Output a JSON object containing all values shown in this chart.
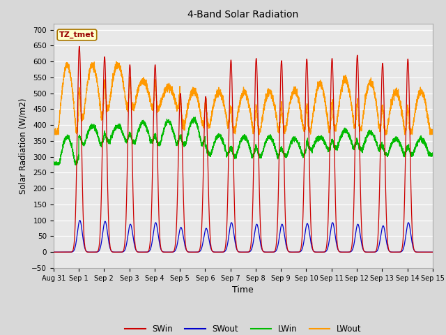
{
  "title": "4-Band Solar Radiation",
  "xlabel": "Time",
  "ylabel": "Solar Radiation (W/m2)",
  "ylim": [
    -50,
    720
  ],
  "legend_labels": [
    "SWin",
    "SWout",
    "LWin",
    "LWout"
  ],
  "legend_colors": [
    "#cc0000",
    "#0000cc",
    "#00bb00",
    "#ff9900"
  ],
  "fig_bg_color": "#d8d8d8",
  "plot_bg_color": "#e8e8e8",
  "grid_color": "#ffffff",
  "annotation_text": "TZ_tmet",
  "annotation_bg": "#ffffcc",
  "annotation_border": "#aa7700",
  "annotation_text_color": "#990000",
  "n_points": 4320,
  "n_days": 15,
  "sw_peaks": [
    648,
    615,
    590,
    590,
    500,
    490,
    605,
    610,
    603,
    608,
    610,
    620,
    595,
    608,
    0
  ],
  "sw_out_peaks": [
    100,
    97,
    88,
    93,
    78,
    75,
    93,
    88,
    88,
    90,
    93,
    88,
    83,
    93,
    0
  ],
  "lwin_night": [
    278,
    340,
    348,
    345,
    340,
    338,
    308,
    303,
    303,
    303,
    323,
    328,
    323,
    308,
    308
  ],
  "lwin_day": [
    362,
    397,
    397,
    407,
    412,
    418,
    367,
    362,
    362,
    357,
    362,
    382,
    377,
    357,
    357
  ],
  "lwout_night": [
    378,
    423,
    453,
    453,
    453,
    398,
    398,
    383,
    383,
    383,
    383,
    393,
    388,
    378,
    378
  ],
  "lwout_day_peak": [
    590,
    590,
    590,
    540,
    520,
    510,
    505,
    505,
    505,
    510,
    530,
    545,
    535,
    505,
    505
  ],
  "tick_labels": [
    "Aug 31",
    "Sep 1",
    "Sep 2",
    "Sep 3",
    "Sep 4",
    "Sep 5",
    "Sep 6",
    "Sep 7",
    "Sep 8",
    "Sep 9",
    "Sep 10",
    "Sep 11",
    "Sep 12",
    "Sep 13",
    "Sep 14",
    "Sep 15"
  ]
}
